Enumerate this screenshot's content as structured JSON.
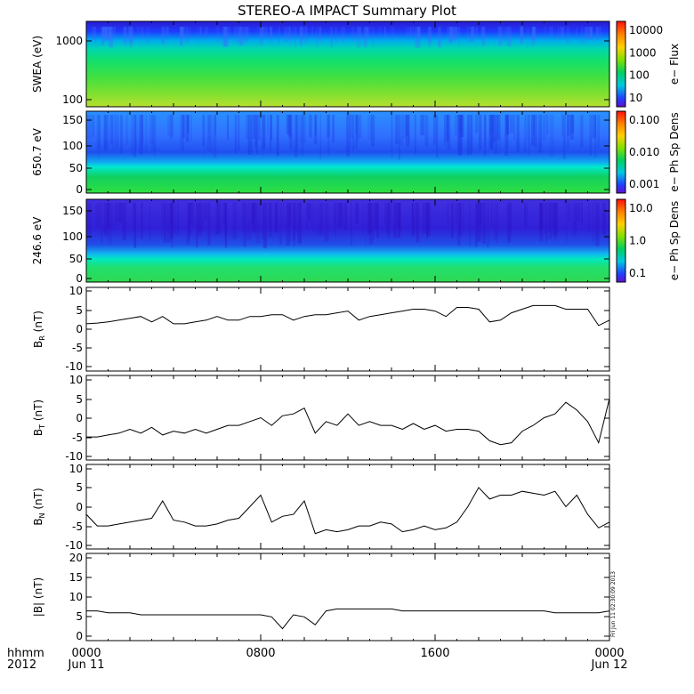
{
  "title": "STEREO-A IMPACT Summary Plot",
  "footer": {
    "time_label": "hhmm",
    "year_label": "2012",
    "stamp": "Fri Jun 11 02:30:09 2013"
  },
  "x_axis": {
    "ticks": [
      {
        "hour": 0,
        "label": "0000",
        "sublabel": "Jun 11"
      },
      {
        "hour": 8,
        "label": "0800",
        "sublabel": ""
      },
      {
        "hour": 16,
        "label": "1600",
        "sublabel": ""
      },
      {
        "hour": 24,
        "label": "0000",
        "sublabel": "Jun 12"
      }
    ],
    "range_hours": [
      0,
      24
    ]
  },
  "chart_data": [
    {
      "type": "heatmap",
      "ylabel": "SWEA (eV)",
      "y_scale": "log",
      "ylim": [
        100,
        2000
      ],
      "y_ticks": [
        "1000",
        "100"
      ],
      "colorbar": {
        "label": "e− Flux",
        "scale": "log",
        "ticks": [
          "10000",
          "1000",
          "100",
          "10"
        ]
      }
    },
    {
      "type": "heatmap",
      "ylabel": "650.7 eV",
      "ylim": [
        0,
        180
      ],
      "y_ticks": [
        "150",
        "100",
        "50",
        "0"
      ],
      "colorbar": {
        "label": "e− Ph Sp Dens",
        "scale": "log",
        "ticks": [
          "0.100",
          "0.010",
          "0.001"
        ]
      }
    },
    {
      "type": "heatmap",
      "ylabel": "246.6 eV",
      "ylim": [
        0,
        180
      ],
      "y_ticks": [
        "150",
        "100",
        "50",
        "0"
      ],
      "colorbar": {
        "label": "e− Ph Sp Dens",
        "scale": "log",
        "ticks": [
          "10.0",
          "1.0",
          "0.1"
        ]
      }
    },
    {
      "type": "line",
      "ylabel_main": "B",
      "ylabel_sub": "R",
      "ylabel_unit": " (nT)",
      "ylim": [
        -12,
        11
      ],
      "y_ticks": [
        "10",
        "5",
        "0",
        "-5",
        "-10"
      ],
      "series": [
        {
          "x": [
            0,
            0.5,
            1,
            1.5,
            2,
            2.5,
            3,
            3.5,
            4,
            4.5,
            5,
            5.5,
            6,
            6.5,
            7,
            7.5,
            8,
            8.5,
            9,
            9.5,
            10,
            10.5,
            11,
            11.5,
            12,
            12.5,
            13,
            13.5,
            14,
            14.5,
            15,
            15.5,
            16,
            16.5,
            17,
            17.5,
            18,
            18.5,
            19,
            19.5,
            20,
            20.5,
            21,
            21.5,
            22,
            22.5,
            23,
            23.5,
            24
          ],
          "y": [
            1,
            1.2,
            1.5,
            2,
            2.5,
            3,
            1.5,
            3,
            1,
            1,
            1.5,
            2,
            3,
            2,
            2,
            3,
            3,
            3.5,
            3.5,
            2,
            3,
            3.5,
            3.5,
            4,
            4.5,
            2,
            3,
            3.5,
            4,
            4.5,
            5,
            5,
            4.5,
            3,
            5.5,
            5.5,
            5,
            1.5,
            2,
            4,
            5,
            6,
            6,
            6,
            5,
            5,
            5,
            0.5,
            2
          ]
        }
      ]
    },
    {
      "type": "line",
      "ylabel_main": "B",
      "ylabel_sub": "T",
      "ylabel_unit": " (nT)",
      "ylim": [
        -11,
        11
      ],
      "y_ticks": [
        "10",
        "5",
        "0",
        "-5",
        "-10"
      ],
      "series": [
        {
          "x": [
            0,
            0.5,
            1,
            1.5,
            2,
            2.5,
            3,
            3.5,
            4,
            4.5,
            5,
            5.5,
            6,
            6.5,
            7,
            7.5,
            8,
            8.5,
            9,
            9.5,
            10,
            10.5,
            11,
            11.5,
            12,
            12.5,
            13,
            13.5,
            14,
            14.5,
            15,
            15.5,
            16,
            16.5,
            17,
            17.5,
            18,
            18.5,
            19,
            19.5,
            20,
            20.5,
            21,
            21.5,
            22,
            22.5,
            23,
            23.5,
            24
          ],
          "y": [
            -5,
            -5,
            -4.5,
            -4,
            -3,
            -4,
            -2.5,
            -4.5,
            -3.5,
            -4,
            -3,
            -4,
            -3,
            -2,
            -2,
            -1,
            0,
            -2,
            0.5,
            1,
            2.5,
            -4,
            -1,
            -2,
            1,
            -2,
            -1,
            -2,
            -2,
            -3,
            -1.5,
            -3,
            -2,
            -3.5,
            -3,
            -3,
            -3.5,
            -6,
            -7,
            -6.5,
            -3.5,
            -2,
            0,
            1,
            4,
            2,
            -1,
            -6.5,
            5
          ]
        }
      ]
    },
    {
      "type": "line",
      "ylabel_main": "B",
      "ylabel_sub": "N",
      "ylabel_unit": " (nT)",
      "ylim": [
        -11,
        11
      ],
      "y_ticks": [
        "10",
        "5",
        "0",
        "-5",
        "-10"
      ],
      "series": [
        {
          "x": [
            0,
            0.5,
            1,
            1.5,
            2,
            2.5,
            3,
            3.5,
            4,
            4.5,
            5,
            5.5,
            6,
            6.5,
            7,
            7.5,
            8,
            8.5,
            9,
            9.5,
            10,
            10.5,
            11,
            11.5,
            12,
            12.5,
            13,
            13.5,
            14,
            14.5,
            15,
            15.5,
            16,
            16.5,
            17,
            17.5,
            18,
            18.5,
            19,
            19.5,
            20,
            20.5,
            21,
            21.5,
            22,
            22.5,
            23,
            23.5,
            24
          ],
          "y": [
            -2,
            -5,
            -5,
            -4.5,
            -4,
            -3.5,
            -3,
            1.5,
            -3.5,
            -4,
            -5,
            -5,
            -4.5,
            -3.5,
            -3,
            0,
            3,
            -4,
            -2.5,
            -2,
            1.5,
            -7,
            -6,
            -6.5,
            -6,
            -5,
            -5,
            -4,
            -4.5,
            -6.5,
            -6,
            -5,
            -6,
            -5.5,
            -4,
            0,
            5,
            2,
            3,
            3,
            4,
            3.5,
            3,
            4,
            0,
            3,
            -2,
            -5.5,
            -4
          ]
        }
      ]
    },
    {
      "type": "line",
      "ylabel": "|B| (nT)",
      "ylim": [
        -1,
        21
      ],
      "y_ticks": [
        "20",
        "15",
        "10",
        "5",
        "0"
      ],
      "series": [
        {
          "x": [
            0,
            0.5,
            1,
            1.5,
            2,
            2.5,
            3,
            3.5,
            4,
            4.5,
            5,
            5.5,
            6,
            6.5,
            7,
            7.5,
            8,
            8.5,
            9,
            9.5,
            10,
            10.5,
            11,
            11.5,
            12,
            12.5,
            13,
            13.5,
            14,
            14.5,
            15,
            15.5,
            16,
            16.5,
            17,
            17.5,
            18,
            18.5,
            19,
            19.5,
            20,
            20.5,
            21,
            21.5,
            22,
            22.5,
            23,
            23.5,
            24
          ],
          "y": [
            6.5,
            6.5,
            6,
            6,
            6,
            5.5,
            5.5,
            5.5,
            5.5,
            5.5,
            5.5,
            5.5,
            5.5,
            5.5,
            5.5,
            5.5,
            5.5,
            5,
            2,
            5.5,
            5,
            3,
            6.5,
            7,
            7,
            7,
            7,
            7,
            7,
            6.5,
            6.5,
            6.5,
            6.5,
            6.5,
            6.5,
            6.5,
            6.5,
            6.5,
            6.5,
            6.5,
            6.5,
            6.5,
            6.5,
            6,
            6,
            6,
            6,
            6,
            6.5
          ]
        }
      ]
    }
  ]
}
